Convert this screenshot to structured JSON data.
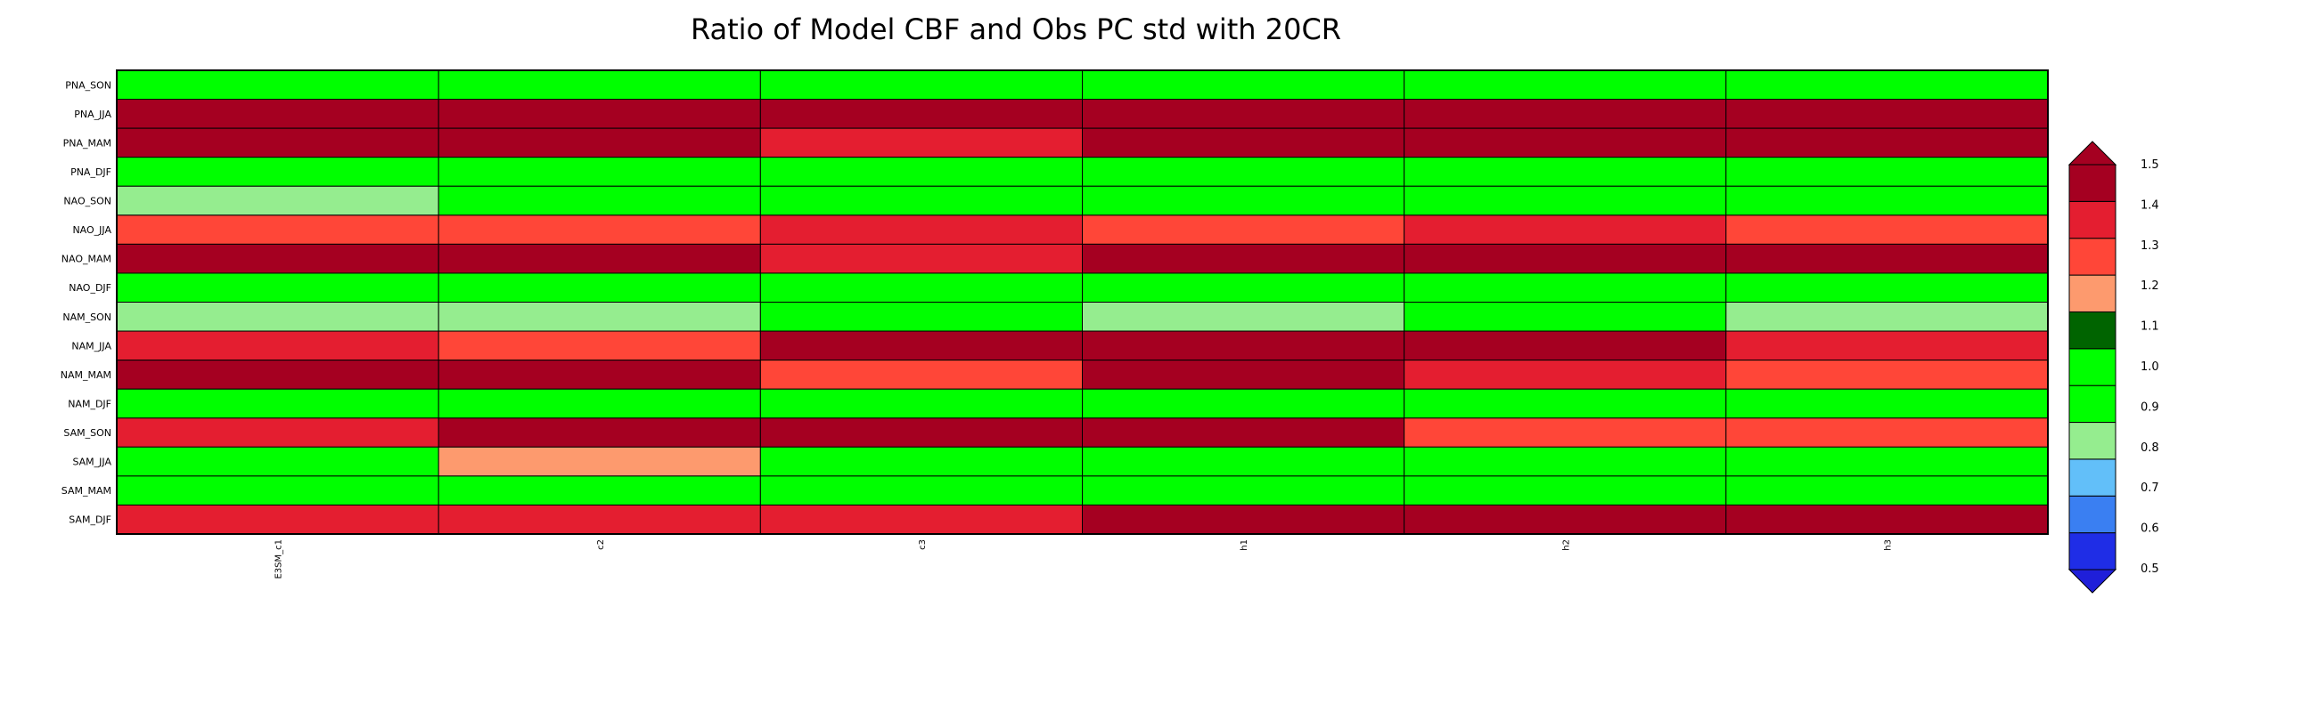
{
  "chart_data": {
    "type": "heatmap",
    "title": "Ratio of Model CBF and Obs PC std with 20CR",
    "columns": [
      "E3SM_c1",
      "c2",
      "c3",
      "h1",
      "h2",
      "h3"
    ],
    "rows": [
      "PNA_SON",
      "PNA_JJA",
      "PNA_MAM",
      "PNA_DJF",
      "NAO_SON",
      "NAO_JJA",
      "NAO_MAM",
      "NAO_DJF",
      "NAM_SON",
      "NAM_JJA",
      "NAM_MAM",
      "NAM_DJF",
      "SAM_SON",
      "SAM_JJA",
      "SAM_MAM",
      "SAM_DJF"
    ],
    "values": [
      [
        0.95,
        0.95,
        0.95,
        0.85,
        0.95,
        0.95
      ],
      [
        1.45,
        1.45,
        1.55,
        1.55,
        1.55,
        1.45
      ],
      [
        1.55,
        1.55,
        1.35,
        1.55,
        1.55,
        1.55
      ],
      [
        0.85,
        0.85,
        0.85,
        0.95,
        0.95,
        0.85
      ],
      [
        0.75,
        0.85,
        0.85,
        0.95,
        0.85,
        0.85
      ],
      [
        1.25,
        1.25,
        1.35,
        1.25,
        1.35,
        1.25
      ],
      [
        1.55,
        1.55,
        1.35,
        1.55,
        1.45,
        1.45
      ],
      [
        0.85,
        0.85,
        0.85,
        0.95,
        0.95,
        0.95
      ],
      [
        0.75,
        0.75,
        0.85,
        0.75,
        0.85,
        0.75
      ],
      [
        1.35,
        1.25,
        1.55,
        1.45,
        1.55,
        1.35
      ],
      [
        1.55,
        1.55,
        1.25,
        1.45,
        1.35,
        1.25
      ],
      [
        0.85,
        0.95,
        0.85,
        0.95,
        0.95,
        0.95
      ],
      [
        1.35,
        1.45,
        1.45,
        1.45,
        1.25,
        1.25
      ],
      [
        0.95,
        1.15,
        0.95,
        0.95,
        0.85,
        0.85
      ],
      [
        0.95,
        0.95,
        0.95,
        0.95,
        0.95,
        0.95
      ],
      [
        1.35,
        1.35,
        1.35,
        1.55,
        1.55,
        1.55
      ]
    ],
    "colorbar": {
      "levels": [
        "0.5",
        "0.6",
        "0.7",
        "0.8",
        "0.9",
        "1.0",
        "1.1",
        "1.2",
        "1.3",
        "1.4",
        "1.5"
      ],
      "colors": [
        "#1f2de6",
        "#3a7ff2",
        "#62bff9",
        "#95ed8f",
        "#00ff00",
        "#00ff00",
        "#006400",
        "#fd9a6e",
        "#ff4638",
        "#e41e30",
        "#a50021"
      ],
      "under_color": "#1f1fd9",
      "over_color": "#a50021",
      "placement": "right"
    }
  }
}
